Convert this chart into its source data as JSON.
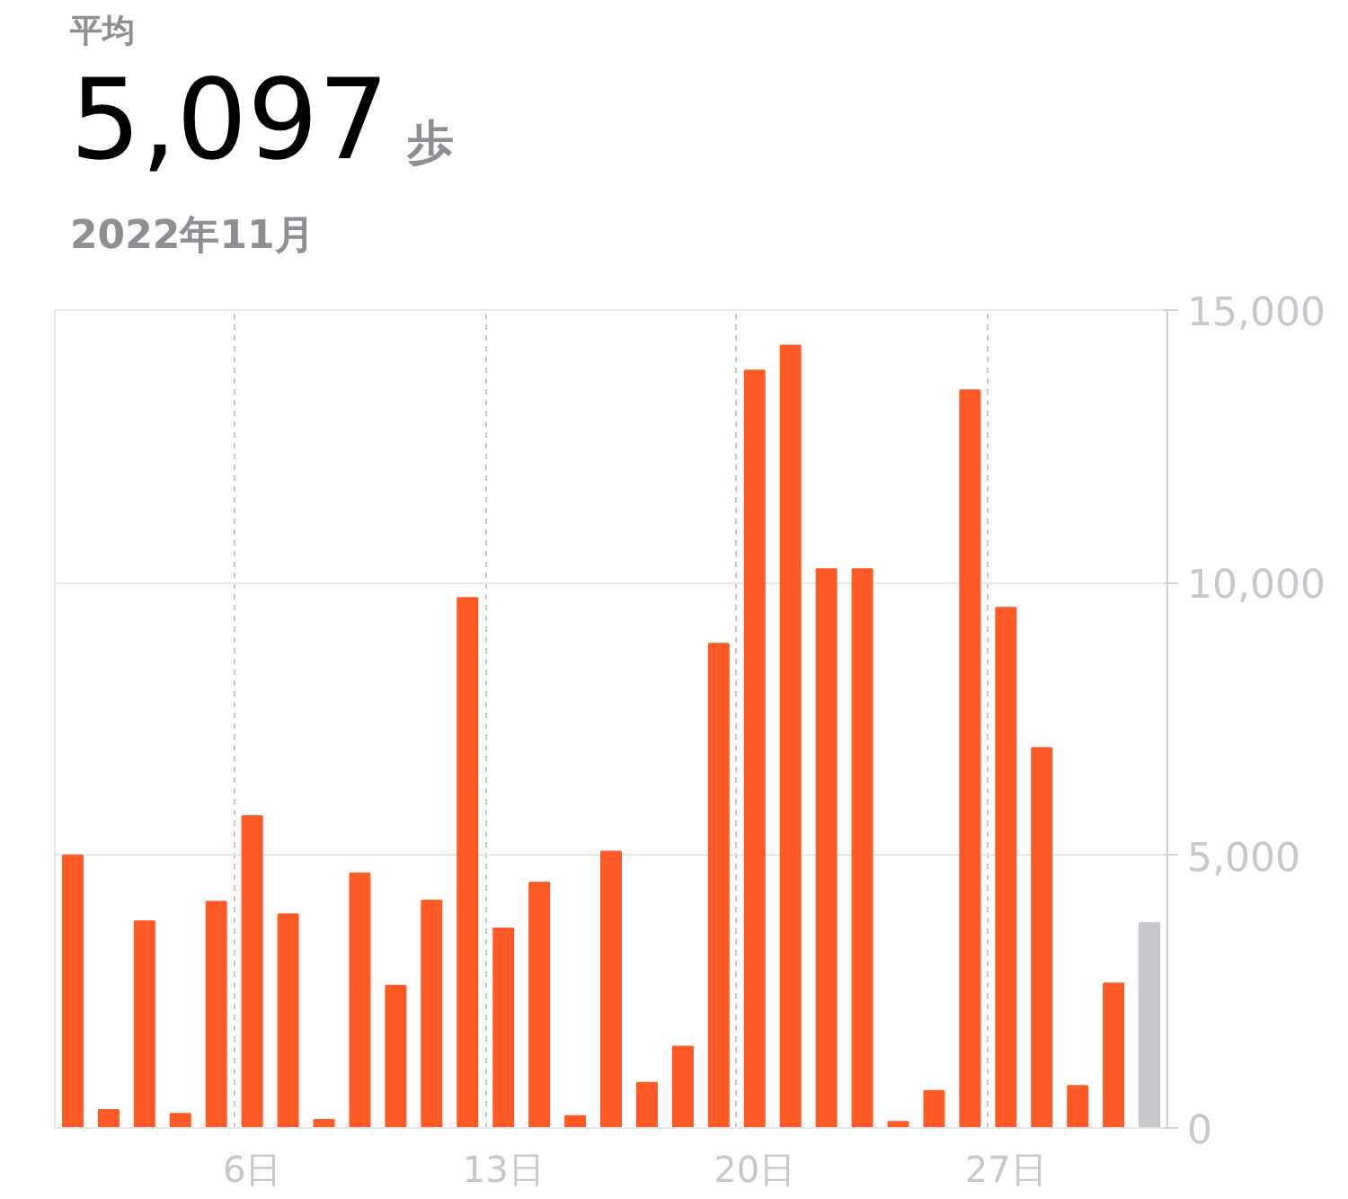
{
  "chart_data": {
    "type": "bar",
    "annotations": [
      "平均",
      "歩"
    ],
    "title": "5,097",
    "subtitle": "2022年11月",
    "categories": [
      null,
      null,
      null,
      null,
      null,
      "6日",
      null,
      null,
      null,
      null,
      null,
      null,
      "13日",
      null,
      null,
      null,
      null,
      null,
      null,
      "20日",
      null,
      null,
      null,
      null,
      null,
      null,
      "27日",
      null,
      null,
      null,
      null
    ],
    "values": [
      5000,
      330,
      3790,
      260,
      4150,
      5720,
      3920,
      150,
      4670,
      2610,
      4170,
      9720,
      3660,
      4500,
      220,
      5070,
      830,
      1490,
      8880,
      13890,
      14350,
      10250,
      10250,
      110,
      680,
      13530,
      9540,
      6970,
      770,
      2650,
      3760
    ],
    "colors": [
      "#ff5a26",
      "#ff5a26",
      "#ff5a26",
      "#ff5a26",
      "#ff5a26",
      "#ff5a26",
      "#ff5a26",
      "#ff5a26",
      "#ff5a26",
      "#ff5a26",
      "#ff5a26",
      "#ff5a26",
      "#ff5a26",
      "#ff5a26",
      "#ff5a26",
      "#ff5a26",
      "#ff5a26",
      "#ff5a26",
      "#ff5a26",
      "#ff5a26",
      "#ff5a26",
      "#ff5a26",
      "#ff5a26",
      "#ff5a26",
      "#ff5a26",
      "#ff5a26",
      "#ff5a26",
      "#ff5a26",
      "#ff5a26",
      "#ff5a26",
      "#c7c7cc"
    ],
    "ylim": [
      0,
      15000
    ],
    "yticks": [
      0,
      {
        "value": 5000,
        "label": "5,000"
      },
      {
        "value": 10000,
        "label": "10,000"
      },
      {
        "value": 15000,
        "label": "15,000"
      }
    ],
    "grid": true
  }
}
